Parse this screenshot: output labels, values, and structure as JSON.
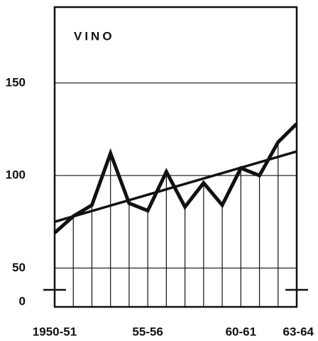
{
  "chart_data": {
    "type": "line",
    "title": "VINO",
    "categories": [
      "1950-51",
      null,
      null,
      null,
      null,
      "55-56",
      null,
      null,
      null,
      null,
      "60-61",
      null,
      null,
      "63-64"
    ],
    "series": [
      {
        "color": "#111111",
        "values": [
          69,
          78,
          84,
          112,
          85,
          81,
          102,
          83,
          96,
          84,
          104,
          100,
          118,
          128
        ]
      }
    ],
    "trend": {
      "color": "#111111",
      "values": [
        75,
        113
      ]
    },
    "ylim": [
      29,
      191
    ],
    "yticks": [
      0,
      50,
      100,
      150
    ],
    "grid": true,
    "axis_break": true,
    "drop_lines": true
  }
}
